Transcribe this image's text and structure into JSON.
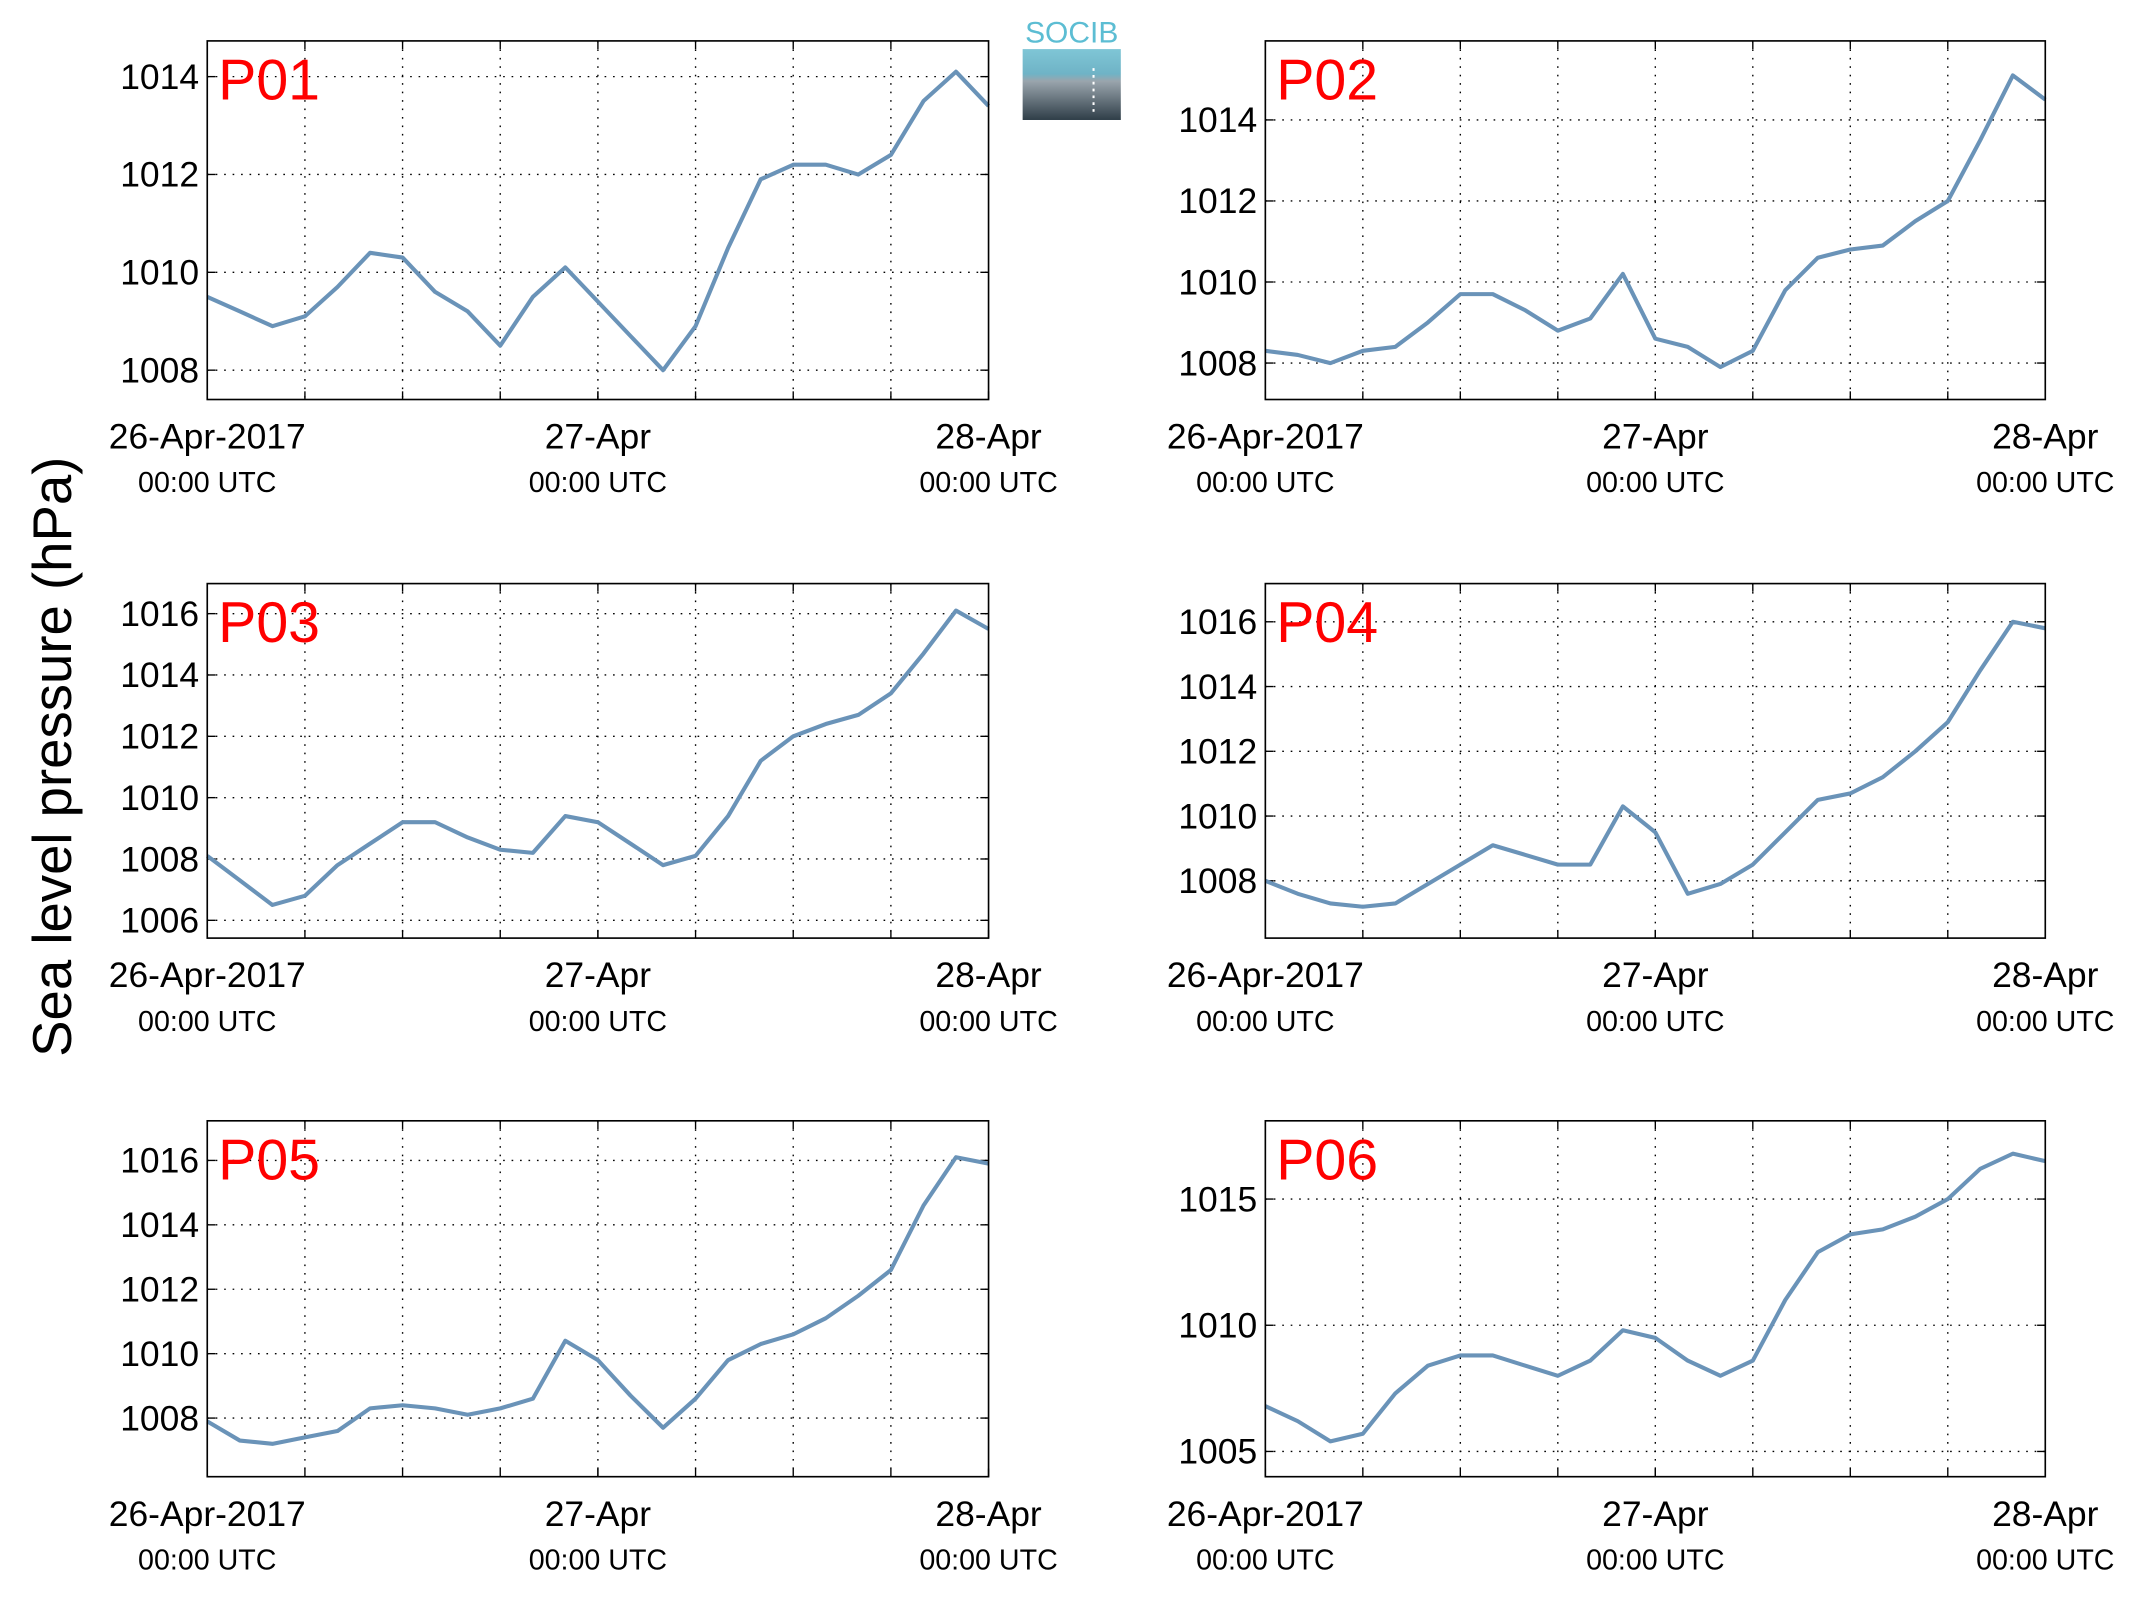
{
  "ylabel": "Sea level pressure (hPa)",
  "logo": "SOCIB",
  "chart_data": [
    {
      "type": "line",
      "title": "P01",
      "color": "#6a93b8",
      "grid": true,
      "x": [
        "2017-04-26T00:00Z",
        "2017-04-26T02:00Z",
        "2017-04-26T04:00Z",
        "2017-04-26T06:00Z",
        "2017-04-26T08:00Z",
        "2017-04-26T10:00Z",
        "2017-04-26T12:00Z",
        "2017-04-26T14:00Z",
        "2017-04-26T16:00Z",
        "2017-04-26T18:00Z",
        "2017-04-26T20:00Z",
        "2017-04-26T22:00Z",
        "2017-04-27T00:00Z",
        "2017-04-27T02:00Z",
        "2017-04-27T04:00Z",
        "2017-04-27T06:00Z",
        "2017-04-27T08:00Z",
        "2017-04-27T10:00Z",
        "2017-04-27T12:00Z",
        "2017-04-27T14:00Z",
        "2017-04-27T16:00Z",
        "2017-04-27T18:00Z",
        "2017-04-27T20:00Z",
        "2017-04-27T22:00Z",
        "2017-04-28T00:00Z"
      ],
      "values": [
        1009.5,
        1009.2,
        1008.9,
        1009.1,
        1009.7,
        1010.4,
        1010.3,
        1009.6,
        1009.2,
        1008.5,
        1009.5,
        1010.1,
        1009.4,
        1008.7,
        1008.0,
        1008.9,
        1010.5,
        1011.9,
        1012.2,
        1012.2,
        1012.0,
        1012.4,
        1013.5,
        1014.1,
        1013.4
      ],
      "xlim": [
        "2017-04-26T00:00Z",
        "2017-04-28T00:00Z"
      ],
      "xticks": [
        {
          "value": "2017-04-26T00:00Z",
          "label": "26-Apr-2017",
          "sublabel": "00:00 UTC"
        },
        {
          "value": "2017-04-27T00:00Z",
          "label": "27-Apr",
          "sublabel": "00:00 UTC"
        },
        {
          "value": "2017-04-28T00:00Z",
          "label": "28-Apr",
          "sublabel": "00:00 UTC"
        }
      ],
      "xgrid": [
        "2017-04-26T06:00Z",
        "2017-04-26T12:00Z",
        "2017-04-26T18:00Z",
        "2017-04-27T00:00Z",
        "2017-04-27T06:00Z",
        "2017-04-27T12:00Z",
        "2017-04-27T18:00Z"
      ],
      "ylim": [
        1007.4,
        1014.73
      ],
      "yticks": [
        1008,
        1010,
        1012,
        1014
      ]
    },
    {
      "type": "line",
      "title": "P02",
      "color": "#6a93b8",
      "grid": true,
      "x": [
        "2017-04-26T00:00Z",
        "2017-04-26T02:00Z",
        "2017-04-26T04:00Z",
        "2017-04-26T06:00Z",
        "2017-04-26T08:00Z",
        "2017-04-26T10:00Z",
        "2017-04-26T12:00Z",
        "2017-04-26T14:00Z",
        "2017-04-26T16:00Z",
        "2017-04-26T18:00Z",
        "2017-04-26T20:00Z",
        "2017-04-26T22:00Z",
        "2017-04-27T00:00Z",
        "2017-04-27T02:00Z",
        "2017-04-27T04:00Z",
        "2017-04-27T06:00Z",
        "2017-04-27T08:00Z",
        "2017-04-27T10:00Z",
        "2017-04-27T12:00Z",
        "2017-04-27T14:00Z",
        "2017-04-27T16:00Z",
        "2017-04-27T18:00Z",
        "2017-04-27T20:00Z",
        "2017-04-27T22:00Z",
        "2017-04-28T00:00Z"
      ],
      "values": [
        1008.3,
        1008.2,
        1008.0,
        1008.3,
        1008.4,
        1009.0,
        1009.7,
        1009.7,
        1009.3,
        1008.8,
        1009.1,
        1010.2,
        1008.6,
        1008.4,
        1007.9,
        1008.3,
        1009.8,
        1010.6,
        1010.8,
        1010.9,
        1011.5,
        1012.0,
        1013.5,
        1015.1,
        1014.5
      ],
      "xlim": [
        "2017-04-26T00:00Z",
        "2017-04-28T00:00Z"
      ],
      "xticks": [
        {
          "value": "2017-04-26T00:00Z",
          "label": "26-Apr-2017",
          "sublabel": "00:00 UTC"
        },
        {
          "value": "2017-04-27T00:00Z",
          "label": "27-Apr",
          "sublabel": "00:00 UTC"
        },
        {
          "value": "2017-04-28T00:00Z",
          "label": "28-Apr",
          "sublabel": "00:00 UTC"
        }
      ],
      "xgrid": [
        "2017-04-26T06:00Z",
        "2017-04-26T12:00Z",
        "2017-04-26T18:00Z",
        "2017-04-27T00:00Z",
        "2017-04-27T06:00Z",
        "2017-04-27T12:00Z",
        "2017-04-27T18:00Z"
      ],
      "ylim": [
        1007.1,
        1015.95
      ],
      "yticks": [
        1008,
        1010,
        1012,
        1014
      ]
    },
    {
      "type": "line",
      "title": "P03",
      "color": "#6a93b8",
      "grid": true,
      "x": [
        "2017-04-26T00:00Z",
        "2017-04-26T02:00Z",
        "2017-04-26T04:00Z",
        "2017-04-26T06:00Z",
        "2017-04-26T08:00Z",
        "2017-04-26T10:00Z",
        "2017-04-26T12:00Z",
        "2017-04-26T14:00Z",
        "2017-04-26T16:00Z",
        "2017-04-26T18:00Z",
        "2017-04-26T20:00Z",
        "2017-04-26T22:00Z",
        "2017-04-27T00:00Z",
        "2017-04-27T02:00Z",
        "2017-04-27T04:00Z",
        "2017-04-27T06:00Z",
        "2017-04-27T08:00Z",
        "2017-04-27T10:00Z",
        "2017-04-27T12:00Z",
        "2017-04-27T14:00Z",
        "2017-04-27T16:00Z",
        "2017-04-27T18:00Z",
        "2017-04-27T20:00Z",
        "2017-04-27T22:00Z",
        "2017-04-28T00:00Z"
      ],
      "values": [
        1008.1,
        1007.3,
        1006.5,
        1006.8,
        1007.8,
        1008.5,
        1009.2,
        1009.2,
        1008.7,
        1008.3,
        1008.2,
        1009.4,
        1009.2,
        1008.5,
        1007.8,
        1008.1,
        1009.4,
        1011.2,
        1012.0,
        1012.4,
        1012.7,
        1013.4,
        1014.7,
        1016.1,
        1015.5
      ],
      "xlim": [
        "2017-04-26T00:00Z",
        "2017-04-28T00:00Z"
      ],
      "xticks": [
        {
          "value": "2017-04-26T00:00Z",
          "label": "26-Apr-2017",
          "sublabel": "00:00 UTC"
        },
        {
          "value": "2017-04-27T00:00Z",
          "label": "27-Apr",
          "sublabel": "00:00 UTC"
        },
        {
          "value": "2017-04-28T00:00Z",
          "label": "28-Apr",
          "sublabel": "00:00 UTC"
        }
      ],
      "xgrid": [
        "2017-04-26T06:00Z",
        "2017-04-26T12:00Z",
        "2017-04-26T18:00Z",
        "2017-04-27T00:00Z",
        "2017-04-27T06:00Z",
        "2017-04-27T12:00Z",
        "2017-04-27T18:00Z"
      ],
      "ylim": [
        1005.42,
        1016.98
      ],
      "yticks": [
        1006,
        1008,
        1010,
        1012,
        1014,
        1016
      ]
    },
    {
      "type": "line",
      "title": "P04",
      "color": "#6a93b8",
      "grid": true,
      "x": [
        "2017-04-26T00:00Z",
        "2017-04-26T02:00Z",
        "2017-04-26T04:00Z",
        "2017-04-26T06:00Z",
        "2017-04-26T08:00Z",
        "2017-04-26T10:00Z",
        "2017-04-26T12:00Z",
        "2017-04-26T14:00Z",
        "2017-04-26T16:00Z",
        "2017-04-26T18:00Z",
        "2017-04-26T20:00Z",
        "2017-04-26T22:00Z",
        "2017-04-27T00:00Z",
        "2017-04-27T02:00Z",
        "2017-04-27T04:00Z",
        "2017-04-27T06:00Z",
        "2017-04-27T08:00Z",
        "2017-04-27T10:00Z",
        "2017-04-27T12:00Z",
        "2017-04-27T14:00Z",
        "2017-04-27T16:00Z",
        "2017-04-27T18:00Z",
        "2017-04-27T20:00Z",
        "2017-04-27T22:00Z",
        "2017-04-28T00:00Z"
      ],
      "values": [
        1008.0,
        1007.6,
        1007.3,
        1007.2,
        1007.3,
        1007.9,
        1008.5,
        1009.1,
        1008.8,
        1008.5,
        1008.5,
        1010.3,
        1009.5,
        1007.6,
        1007.9,
        1008.5,
        1009.5,
        1010.5,
        1010.7,
        1011.2,
        1012.0,
        1012.9,
        1014.5,
        1016.0,
        1015.8
      ],
      "xlim": [
        "2017-04-26T00:00Z",
        "2017-04-28T00:00Z"
      ],
      "xticks": [
        {
          "value": "2017-04-26T00:00Z",
          "label": "26-Apr-2017",
          "sublabel": "00:00 UTC"
        },
        {
          "value": "2017-04-27T00:00Z",
          "label": "27-Apr",
          "sublabel": "00:00 UTC"
        },
        {
          "value": "2017-04-28T00:00Z",
          "label": "28-Apr",
          "sublabel": "00:00 UTC"
        }
      ],
      "xgrid": [
        "2017-04-26T06:00Z",
        "2017-04-26T12:00Z",
        "2017-04-26T18:00Z",
        "2017-04-27T00:00Z",
        "2017-04-27T06:00Z",
        "2017-04-27T12:00Z",
        "2017-04-27T18:00Z"
      ],
      "ylim": [
        1006.23,
        1017.18
      ],
      "yticks": [
        1008,
        1010,
        1012,
        1014,
        1016
      ]
    },
    {
      "type": "line",
      "title": "P05",
      "color": "#6a93b8",
      "grid": true,
      "x": [
        "2017-04-26T00:00Z",
        "2017-04-26T02:00Z",
        "2017-04-26T04:00Z",
        "2017-04-26T06:00Z",
        "2017-04-26T08:00Z",
        "2017-04-26T10:00Z",
        "2017-04-26T12:00Z",
        "2017-04-26T14:00Z",
        "2017-04-26T16:00Z",
        "2017-04-26T18:00Z",
        "2017-04-26T20:00Z",
        "2017-04-26T22:00Z",
        "2017-04-27T00:00Z",
        "2017-04-27T02:00Z",
        "2017-04-27T04:00Z",
        "2017-04-27T06:00Z",
        "2017-04-27T08:00Z",
        "2017-04-27T10:00Z",
        "2017-04-27T12:00Z",
        "2017-04-27T14:00Z",
        "2017-04-27T16:00Z",
        "2017-04-27T18:00Z",
        "2017-04-27T20:00Z",
        "2017-04-27T22:00Z",
        "2017-04-28T00:00Z"
      ],
      "values": [
        1007.9,
        1007.3,
        1007.2,
        1007.4,
        1007.6,
        1008.3,
        1008.4,
        1008.3,
        1008.1,
        1008.3,
        1008.6,
        1010.4,
        1009.8,
        1008.7,
        1007.7,
        1008.6,
        1009.8,
        1010.3,
        1010.6,
        1011.1,
        1011.8,
        1012.6,
        1014.6,
        1016.1,
        1015.9
      ],
      "xlim": [
        "2017-04-26T00:00Z",
        "2017-04-28T00:00Z"
      ],
      "xticks": [
        {
          "value": "2017-04-26T00:00Z",
          "label": "26-Apr-2017",
          "sublabel": "00:00 UTC"
        },
        {
          "value": "2017-04-27T00:00Z",
          "label": "27-Apr",
          "sublabel": "00:00 UTC"
        },
        {
          "value": "2017-04-28T00:00Z",
          "label": "28-Apr",
          "sublabel": "00:00 UTC"
        }
      ],
      "xgrid": [
        "2017-04-26T06:00Z",
        "2017-04-26T12:00Z",
        "2017-04-26T18:00Z",
        "2017-04-27T00:00Z",
        "2017-04-27T06:00Z",
        "2017-04-27T12:00Z",
        "2017-04-27T18:00Z"
      ],
      "ylim": [
        1006.18,
        1017.23
      ],
      "yticks": [
        1008,
        1010,
        1012,
        1014,
        1016
      ]
    },
    {
      "type": "line",
      "title": "P06",
      "color": "#6a93b8",
      "grid": true,
      "x": [
        "2017-04-26T00:00Z",
        "2017-04-26T02:00Z",
        "2017-04-26T04:00Z",
        "2017-04-26T06:00Z",
        "2017-04-26T08:00Z",
        "2017-04-26T10:00Z",
        "2017-04-26T12:00Z",
        "2017-04-26T14:00Z",
        "2017-04-26T16:00Z",
        "2017-04-26T18:00Z",
        "2017-04-26T20:00Z",
        "2017-04-26T22:00Z",
        "2017-04-27T00:00Z",
        "2017-04-27T02:00Z",
        "2017-04-27T04:00Z",
        "2017-04-27T06:00Z",
        "2017-04-27T08:00Z",
        "2017-04-27T10:00Z",
        "2017-04-27T12:00Z",
        "2017-04-27T14:00Z",
        "2017-04-27T16:00Z",
        "2017-04-27T18:00Z",
        "2017-04-27T20:00Z",
        "2017-04-27T22:00Z",
        "2017-04-28T00:00Z"
      ],
      "values": [
        1006.8,
        1006.2,
        1005.4,
        1005.7,
        1007.3,
        1008.4,
        1008.8,
        1008.8,
        1008.4,
        1008.0,
        1008.6,
        1009.8,
        1009.5,
        1008.6,
        1008.0,
        1008.6,
        1011.0,
        1012.9,
        1013.6,
        1013.8,
        1014.3,
        1015.0,
        1016.2,
        1016.8,
        1016.5
      ],
      "xlim": [
        "2017-04-26T00:00Z",
        "2017-04-28T00:00Z"
      ],
      "xticks": [
        {
          "value": "2017-04-26T00:00Z",
          "label": "26-Apr-2017",
          "sublabel": "00:00 UTC"
        },
        {
          "value": "2017-04-27T00:00Z",
          "label": "27-Apr",
          "sublabel": "00:00 UTC"
        },
        {
          "value": "2017-04-28T00:00Z",
          "label": "28-Apr",
          "sublabel": "00:00 UTC"
        }
      ],
      "xgrid": [
        "2017-04-26T06:00Z",
        "2017-04-26T12:00Z",
        "2017-04-26T18:00Z",
        "2017-04-27T00:00Z",
        "2017-04-27T06:00Z",
        "2017-04-27T12:00Z",
        "2017-04-27T18:00Z"
      ],
      "ylim": [
        1004.0,
        1018.1
      ],
      "yticks": [
        1005,
        1010,
        1015
      ]
    }
  ]
}
